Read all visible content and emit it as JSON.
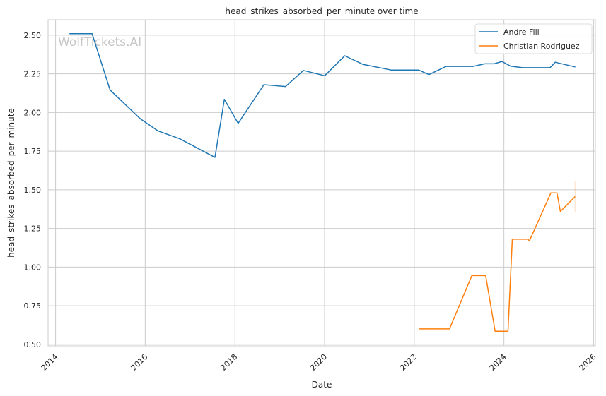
{
  "chart_data": {
    "type": "line",
    "title": "head_strikes_absorbed_per_minute over time",
    "xlabel": "Date",
    "ylabel": "head_strikes_absorbed_per_minute",
    "watermark": "WolfTickets.AI",
    "xlim": [
      "2013-11-01",
      "2026-01-15"
    ],
    "ylim": [
      0.49,
      2.6
    ],
    "x_ticks": [
      "2014-01-01",
      "2016-01-01",
      "2018-01-01",
      "2020-01-01",
      "2022-01-01",
      "2024-01-01",
      "2026-01-01"
    ],
    "x_tick_labels": [
      "2014",
      "2016",
      "2018",
      "2020",
      "2022",
      "2024",
      "2026"
    ],
    "y_ticks": [
      0.5,
      0.75,
      1.0,
      1.25,
      1.5,
      1.75,
      2.0,
      2.25,
      2.5
    ],
    "y_tick_labels": [
      "0.50",
      "0.75",
      "1.00",
      "1.25",
      "1.50",
      "1.75",
      "2.00",
      "2.25",
      "2.50"
    ],
    "grid": true,
    "legend_position": "top-right",
    "series": [
      {
        "name": "Andre Fili",
        "color": "#1f77b4",
        "points": [
          {
            "x": "2014-04-26",
            "y": 2.51
          },
          {
            "x": "2014-10-25",
            "y": 2.51
          },
          {
            "x": "2015-03-21",
            "y": 2.145
          },
          {
            "x": "2015-11-21",
            "y": 1.96
          },
          {
            "x": "2016-04-16",
            "y": 1.88
          },
          {
            "x": "2016-10-08",
            "y": 1.83
          },
          {
            "x": "2017-07-22",
            "y": 1.71
          },
          {
            "x": "2017-10-07",
            "y": 2.085
          },
          {
            "x": "2018-01-27",
            "y": 1.93
          },
          {
            "x": "2018-08-25",
            "y": 2.18
          },
          {
            "x": "2019-02-17",
            "y": 2.168
          },
          {
            "x": "2019-07-13",
            "y": 2.272
          },
          {
            "x": "2020-01-02",
            "y": 2.238
          },
          {
            "x": "2020-06-13",
            "y": 2.367
          },
          {
            "x": "2020-11-07",
            "y": 2.312
          },
          {
            "x": "2021-06-26",
            "y": 2.275
          },
          {
            "x": "2022-02-05",
            "y": 2.275
          },
          {
            "x": "2022-04-30",
            "y": 2.245
          },
          {
            "x": "2022-09-17",
            "y": 2.298
          },
          {
            "x": "2023-04-22",
            "y": 2.298
          },
          {
            "x": "2023-07-29",
            "y": 2.315
          },
          {
            "x": "2023-10-14",
            "y": 2.315
          },
          {
            "x": "2023-12-16",
            "y": 2.33
          },
          {
            "x": "2024-02-24",
            "y": 2.3
          },
          {
            "x": "2024-06-01",
            "y": 2.29
          },
          {
            "x": "2025-01-11",
            "y": 2.29
          },
          {
            "x": "2025-02-22",
            "y": 2.325
          },
          {
            "x": "2025-08-02",
            "y": 2.295
          }
        ]
      },
      {
        "name": "Christian Rodriguez",
        "color": "#ff7f0e",
        "points": [
          {
            "x": "2022-02-12",
            "y": 0.6
          },
          {
            "x": "2022-10-15",
            "y": 0.6
          },
          {
            "x": "2023-04-15",
            "y": 0.945
          },
          {
            "x": "2023-08-05",
            "y": 0.945
          },
          {
            "x": "2023-10-21",
            "y": 0.585
          },
          {
            "x": "2024-02-03",
            "y": 0.585
          },
          {
            "x": "2024-03-09",
            "y": 1.18
          },
          {
            "x": "2024-07-13",
            "y": 1.18
          },
          {
            "x": "2024-07-27",
            "y": 1.17
          },
          {
            "x": "2025-01-18",
            "y": 1.48
          },
          {
            "x": "2025-03-08",
            "y": 1.48
          },
          {
            "x": "2025-04-05",
            "y": 1.36
          },
          {
            "x": "2025-08-02",
            "y": 1.455
          }
        ]
      }
    ]
  }
}
